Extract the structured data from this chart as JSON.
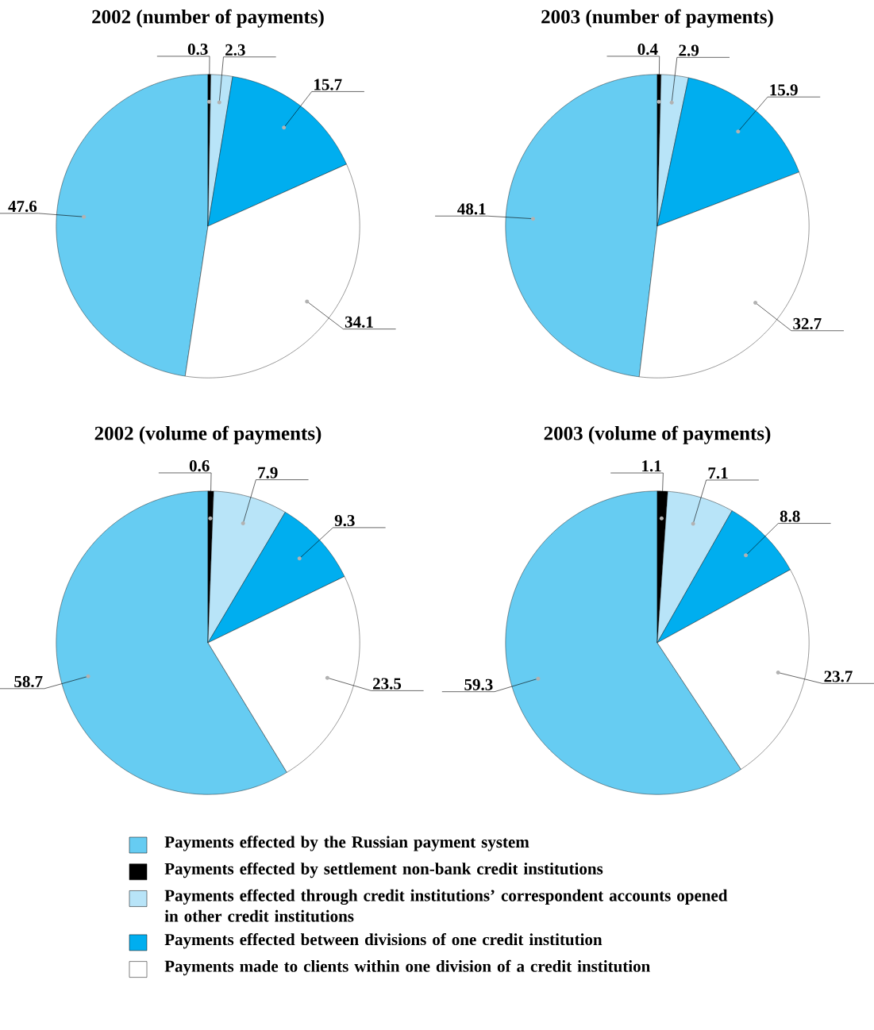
{
  "chart_data": [
    {
      "type": "pie",
      "title": "2002 (number of payments)",
      "categories": [
        "Payments effected by the Russian payment system",
        "Payments effected by settlement non-bank credit institutions",
        "Payments effected through credit institutions’ correspondent accounts opened in other credit institutions",
        "Payments effected between divisions of one credit institution",
        "Payments made to clients within one division of a credit institution"
      ],
      "values": [
        47.6,
        0.3,
        2.3,
        15.7,
        34.1
      ],
      "colors": [
        "#66ccf2",
        "#000000",
        "#b8e4f8",
        "#00aeef",
        "#ffffff"
      ],
      "data_labels": true,
      "legend": "bottom"
    },
    {
      "type": "pie",
      "title": "2003 (number of payments)",
      "categories": [
        null,
        null,
        null,
        null,
        null
      ],
      "values": [
        48.1,
        0.4,
        2.9,
        15.9,
        32.7
      ],
      "colors": [
        "#66ccf2",
        "#000000",
        "#b8e4f8",
        "#00aeef",
        "#ffffff"
      ],
      "data_labels": true
    },
    {
      "type": "pie",
      "title": "2002 (volume of payments)",
      "categories": [
        null,
        null,
        null,
        null,
        null
      ],
      "values": [
        58.7,
        0.6,
        7.9,
        9.3,
        23.5
      ],
      "colors": [
        "#66ccf2",
        "#000000",
        "#b8e4f8",
        "#00aeef",
        "#ffffff"
      ],
      "data_labels": true
    },
    {
      "type": "pie",
      "title": "2003 (volume of payments)",
      "categories": [
        null,
        null,
        null,
        null,
        null
      ],
      "values": [
        59.3,
        1.1,
        7.1,
        8.8,
        23.7
      ],
      "colors": [
        "#66ccf2",
        "#000000",
        "#b8e4f8",
        "#00aeef",
        "#ffffff"
      ],
      "data_labels": true
    }
  ]
}
